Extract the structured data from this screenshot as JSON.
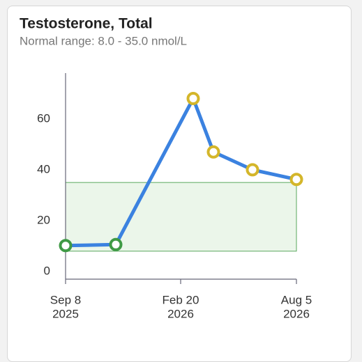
{
  "chart_data": {
    "type": "line",
    "title": "Testosterone, Total",
    "subtitle": "Normal range: 8.0 - 35.0 nmol/L",
    "x": [
      "2025-09-08",
      "2025-11-19",
      "2026-03-10",
      "2026-04-08",
      "2026-06-03",
      "2026-08-05"
    ],
    "series": [
      {
        "color": "#3b82e0",
        "values": [
          10.2,
          10.6,
          68,
          47,
          40,
          36.2
        ],
        "point_colors": [
          "#3f9a45",
          "#3f9a45",
          "#d4b62a",
          "#d4b62a",
          "#d4b62a",
          "#d4b62a"
        ]
      }
    ],
    "normal_range": [
      8,
      35
    ],
    "normal_range_color": "#5aa85e",
    "xlim": [
      "2025-09-08",
      "2026-08-05"
    ],
    "xticks": [
      {
        "value": "2025-09-08",
        "label": [
          "Sep 8",
          "2025"
        ]
      },
      {
        "value": "2026-02-20",
        "label": [
          "Feb 20",
          "2026"
        ]
      },
      {
        "value": "2026-08-05",
        "label": [
          "Aug 5",
          "2026"
        ]
      }
    ],
    "ylim": [
      -3,
      78
    ],
    "yticks": [
      0,
      20,
      40,
      60
    ]
  }
}
